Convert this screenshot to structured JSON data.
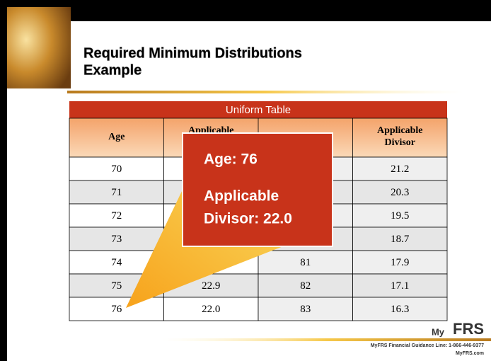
{
  "slide": {
    "title": [
      "Required Minimum Distributions",
      "Example"
    ],
    "table": {
      "caption": "Uniform Table",
      "headers": [
        "Age",
        "Applicable Divisor",
        null,
        "Applicable Divisor"
      ],
      "rows": [
        [
          "70",
          null,
          null,
          "21.2"
        ],
        [
          "71",
          null,
          null,
          "20.3"
        ],
        [
          "72",
          null,
          null,
          "19.5"
        ],
        [
          "73",
          null,
          null,
          "18.7"
        ],
        [
          "74",
          null,
          "81",
          "17.9"
        ],
        [
          "75",
          "22.9",
          "82",
          "17.1"
        ],
        [
          "76",
          "22.0",
          "83",
          "16.3"
        ]
      ]
    },
    "callout": [
      "Age: 76",
      "Applicable",
      "Divisor:  22.0"
    ],
    "footer": {
      "logo_prefix": "My",
      "logo": "FRS",
      "line": "MyFRS Financial Guidance Line: 1-866-446-9377",
      "site": "MyFRS.com"
    }
  }
}
